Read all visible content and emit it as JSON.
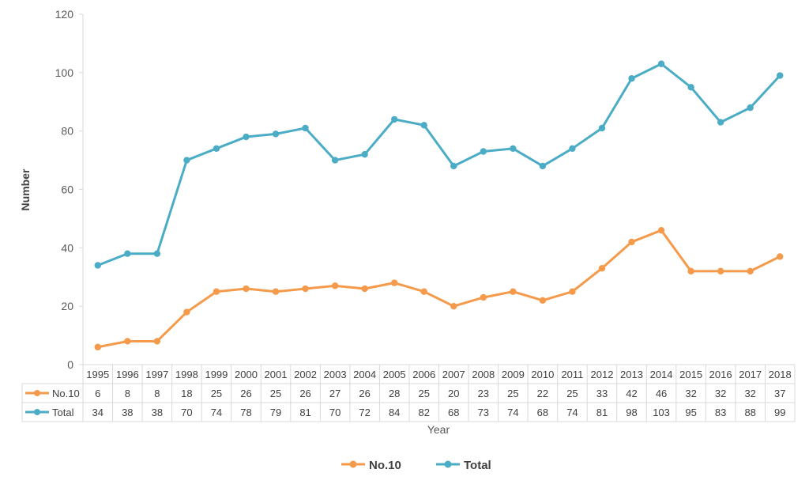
{
  "chart_data": {
    "type": "line",
    "title": "",
    "xlabel": "Year",
    "ylabel": "Number",
    "ylim": [
      0,
      120
    ],
    "yticks": [
      0,
      20,
      40,
      60,
      80,
      100,
      120
    ],
    "grid": false,
    "legend_position": "bottom",
    "data_table": true,
    "x": [
      "1995",
      "1996",
      "1997",
      "1998",
      "1999",
      "2000",
      "2001",
      "2002",
      "2003",
      "2004",
      "2005",
      "2006",
      "2007",
      "2008",
      "2009",
      "2010",
      "2011",
      "2012",
      "2013",
      "2014",
      "2015",
      "2016",
      "2017",
      "2018"
    ],
    "series": [
      {
        "name": "No.10",
        "color": "#F59A4B",
        "values": [
          6,
          8,
          8,
          18,
          25,
          26,
          25,
          26,
          27,
          26,
          28,
          25,
          20,
          23,
          25,
          22,
          25,
          33,
          42,
          46,
          32,
          32,
          32,
          37
        ]
      },
      {
        "name": "Total",
        "color": "#4BACC6",
        "values": [
          34,
          38,
          38,
          70,
          74,
          78,
          79,
          81,
          70,
          72,
          84,
          82,
          68,
          73,
          74,
          68,
          74,
          81,
          98,
          103,
          95,
          83,
          88,
          99
        ]
      }
    ]
  }
}
